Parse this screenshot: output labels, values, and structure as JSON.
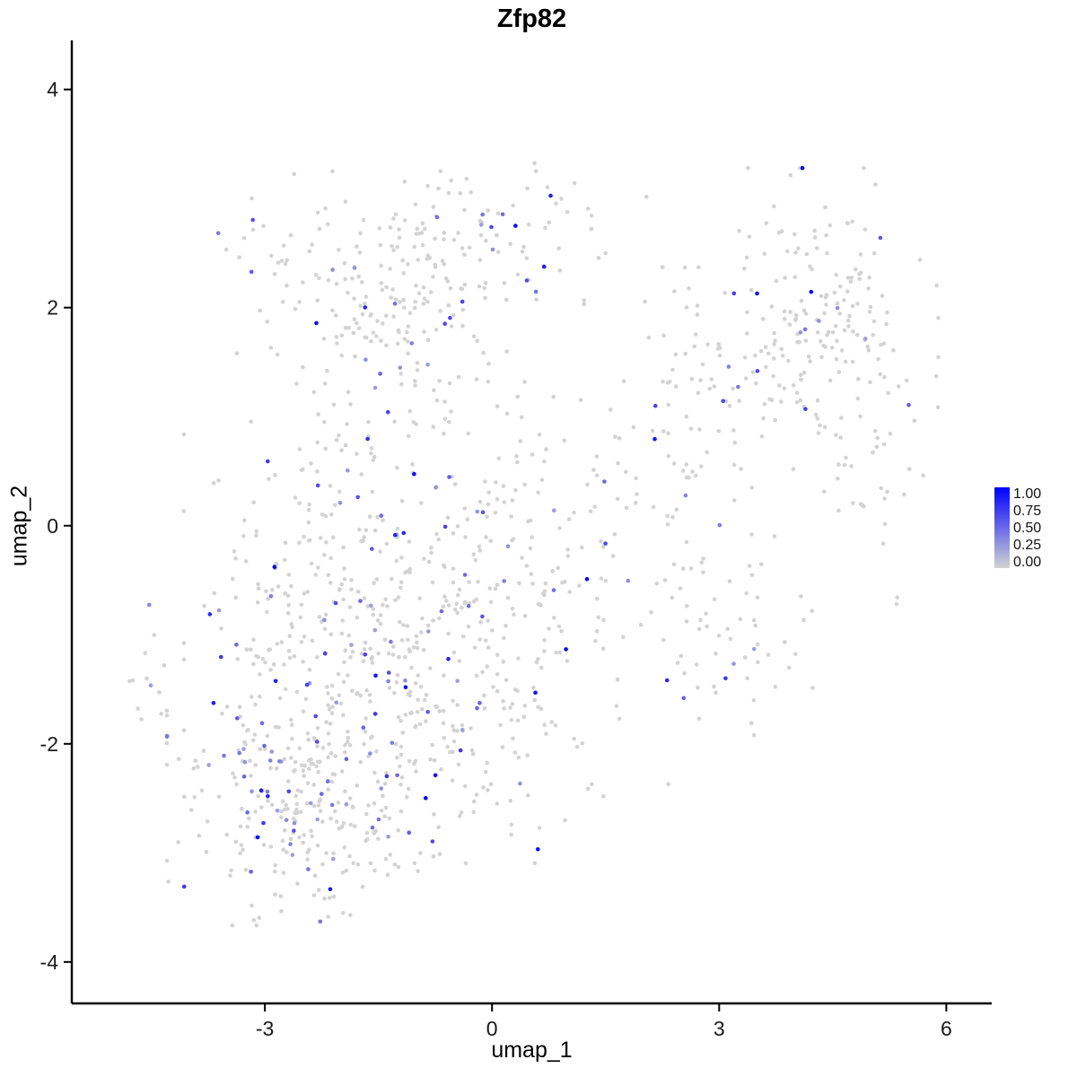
{
  "chart_data": {
    "type": "scatter",
    "title": "Zfp82",
    "xlabel": "umap_1",
    "ylabel": "umap_2",
    "x_ticks": [
      -3,
      0,
      3,
      6
    ],
    "y_ticks": [
      -4,
      -2,
      0,
      2,
      4
    ],
    "x_range": [
      -5.55,
      6.6
    ],
    "y_range": [
      -4.38,
      4.45
    ],
    "grid": false,
    "background": "#FFFFFF",
    "axis_color": "#000000",
    "tick_label_color": "#1a1a1a",
    "legend": {
      "position": "right",
      "tick_labels": [
        "1.00",
        "0.75",
        "0.50",
        "0.25",
        "0.00"
      ],
      "low_color": "#D3D3D3",
      "high_color": "#0000FF"
    },
    "points": {
      "seed": 7,
      "point_radius_px": 2.3,
      "total_points_approx": 1550,
      "value_range": [
        0,
        1
      ],
      "note": "UMAP embedding of cells colored by Zfp82 expression (lightgrey = 0, blue = 1); point cloud approximated by gaussian clusters read from the figure",
      "clusters": [
        {
          "cx": -1.2,
          "cy": 2.1,
          "sdx": 1.05,
          "sdy": 0.5,
          "n": 230,
          "colored_frac": 0.13
        },
        {
          "cx": 0.2,
          "cy": 2.75,
          "sdx": 0.8,
          "sdy": 0.25,
          "n": 50,
          "colored_frac": 0.1
        },
        {
          "cx": -2.0,
          "cy": -0.5,
          "sdx": 0.9,
          "sdy": 0.75,
          "n": 260,
          "colored_frac": 0.15
        },
        {
          "cx": -2.5,
          "cy": -2.4,
          "sdx": 0.78,
          "sdy": 0.55,
          "n": 300,
          "colored_frac": 0.15
        },
        {
          "cx": -0.6,
          "cy": -1.6,
          "sdx": 0.9,
          "sdy": 0.65,
          "n": 220,
          "colored_frac": 0.14
        },
        {
          "cx": 0.5,
          "cy": -0.3,
          "sdx": 0.9,
          "sdy": 0.9,
          "n": 150,
          "colored_frac": 0.12
        },
        {
          "cx": 2.3,
          "cy": 0.3,
          "sdx": 0.7,
          "sdy": 0.9,
          "n": 60,
          "colored_frac": 0.08
        },
        {
          "cx": 3.0,
          "cy": 1.5,
          "sdx": 0.6,
          "sdy": 0.5,
          "n": 60,
          "colored_frac": 0.08
        },
        {
          "cx": 4.4,
          "cy": 1.9,
          "sdx": 0.65,
          "sdy": 0.6,
          "n": 160,
          "colored_frac": 0.06
        },
        {
          "cx": 5.0,
          "cy": 0.9,
          "sdx": 0.4,
          "sdy": 0.8,
          "n": 40,
          "colored_frac": 0.05
        },
        {
          "cx": 3.2,
          "cy": -1.0,
          "sdx": 0.45,
          "sdy": 0.4,
          "n": 45,
          "colored_frac": 0.1
        },
        {
          "cx": -4.55,
          "cy": -1.3,
          "sdx": 0.15,
          "sdy": 0.25,
          "n": 12,
          "colored_frac": 0.08
        }
      ]
    }
  }
}
